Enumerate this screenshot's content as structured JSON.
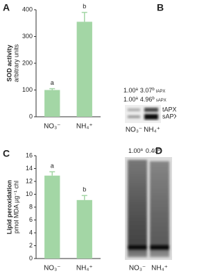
{
  "chart_data": [
    {
      "type": "bar",
      "panel": "A",
      "ylabel": [
        "SOD activity",
        "arbitrary units"
      ],
      "categories": [
        "NO₃⁻",
        "NH₄⁺"
      ],
      "values": [
        100,
        355
      ],
      "errors": [
        5,
        35
      ],
      "annotations": [
        "a",
        "b"
      ],
      "color": "#a3d6a5",
      "ylim": [
        0,
        400
      ],
      "yticks": [
        0,
        100,
        200,
        300,
        400
      ]
    },
    {
      "type": "bar",
      "panel": "C",
      "ylabel": [
        "Lipid peroxidation",
        "pmol MDA µg⁻¹ chl"
      ],
      "categories": [
        "NO₃⁻",
        "NH₄⁺"
      ],
      "values": [
        12.9,
        9.1
      ],
      "errors": [
        0.6,
        0.7
      ],
      "annotations": [
        "a",
        "b"
      ],
      "color": "#a3d6a5",
      "ylim": [
        0,
        16
      ],
      "yticks": [
        0,
        2,
        4,
        6,
        8,
        10,
        12,
        14,
        16
      ]
    }
  ],
  "blots": [
    {
      "panel": "B",
      "rows": [
        {
          "values": [
            {
              "value": "1.00",
              "sup": "a"
            },
            {
              "value": "3.07",
              "sup": "b"
            }
          ],
          "label": "tAPX"
        },
        {
          "values": [
            {
              "value": "1.00",
              "sup": "a"
            },
            {
              "value": "4.96",
              "sup": "b"
            }
          ],
          "label": "sAPX"
        }
      ],
      "band_labels": [
        "tAPX",
        "sAPX"
      ],
      "categories": [
        "NO₃⁻",
        "NH₄⁺"
      ]
    },
    {
      "panel": "D",
      "rows": [
        {
          "values": [
            {
              "value": "1.00",
              "sup": "a"
            },
            {
              "value": "0.40",
              "sup": "b"
            }
          ]
        }
      ],
      "categories": [
        "NO₃⁻",
        "NH₄⁺"
      ]
    }
  ]
}
